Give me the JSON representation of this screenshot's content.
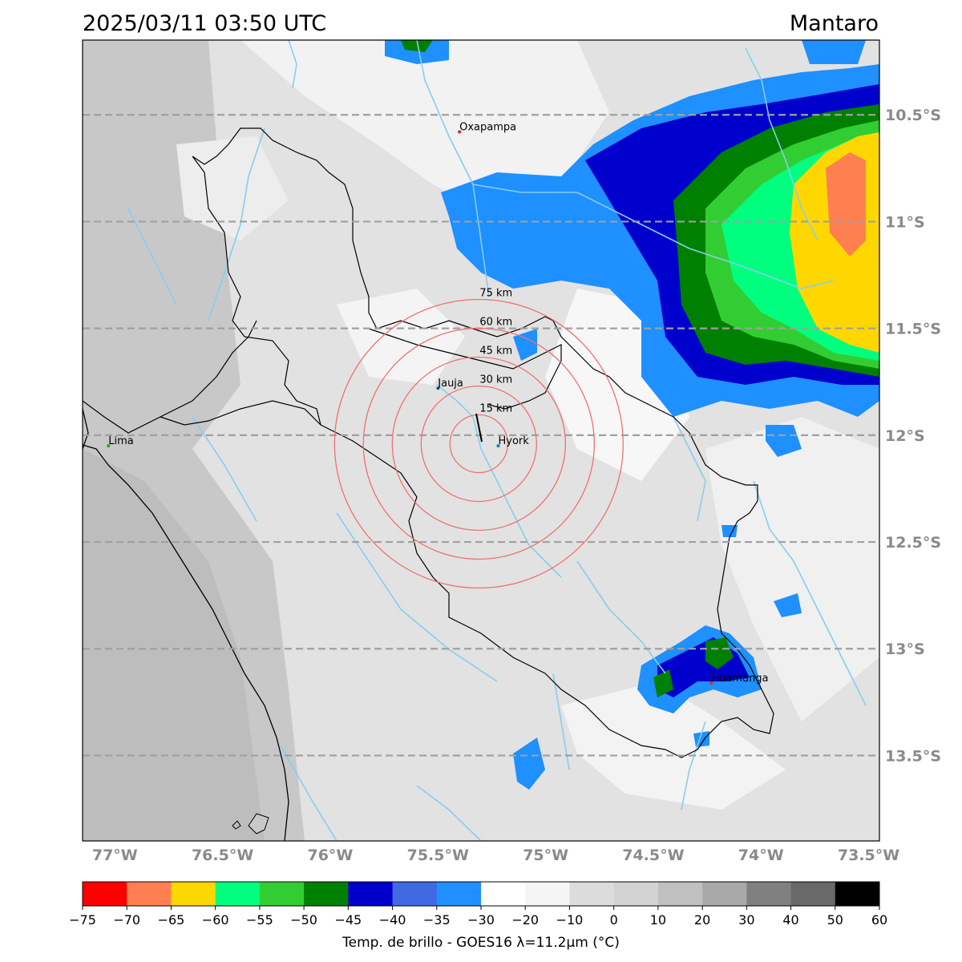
{
  "header": {
    "timestamp": "2025/03/11 03:50 UTC",
    "region": "Mantaro"
  },
  "map": {
    "lon_range": [
      -77.15,
      -73.45
    ],
    "lat_range": [
      -13.9,
      -10.15
    ],
    "lat_ticks": [
      {
        "value": -10.5,
        "label": "10.5°S"
      },
      {
        "value": -11.0,
        "label": "11°S"
      },
      {
        "value": -11.5,
        "label": "11.5°S"
      },
      {
        "value": -12.0,
        "label": "12°S"
      },
      {
        "value": -12.5,
        "label": "12.5°S"
      },
      {
        "value": -13.0,
        "label": "13°S"
      },
      {
        "value": -13.5,
        "label": "13.5°S"
      }
    ],
    "lon_ticks": [
      {
        "value": -77.0,
        "label": "77°W"
      },
      {
        "value": -76.5,
        "label": "76.5°W"
      },
      {
        "value": -76.0,
        "label": "76°W"
      },
      {
        "value": -75.5,
        "label": "75.5°W"
      },
      {
        "value": -75.0,
        "label": "75°W"
      },
      {
        "value": -74.5,
        "label": "74.5°W"
      },
      {
        "value": -74.0,
        "label": "74°W"
      },
      {
        "value": -73.5,
        "label": "73.5°W"
      }
    ],
    "cities": [
      {
        "name": "Oxapampa",
        "lon": -75.4,
        "lat": -10.58,
        "color": "#d62728"
      },
      {
        "name": "Jauja",
        "lon": -75.5,
        "lat": -11.78,
        "color": "#1f77b4"
      },
      {
        "name": "Hyork",
        "lon": -75.22,
        "lat": -12.05,
        "color": "#1f77b4"
      },
      {
        "name": "Lima",
        "lon": -77.03,
        "lat": -12.05,
        "color": "#2ca02c"
      },
      {
        "name": "Huamanga",
        "lon": -74.23,
        "lat": -13.16,
        "color": "#d62728"
      }
    ],
    "radar_center": {
      "lon": -75.31,
      "lat": -12.04
    },
    "rings": [
      {
        "label": "15 km",
        "radius_km": 15
      },
      {
        "label": "30 km",
        "radius_km": 30
      },
      {
        "label": "45 km",
        "radius_km": 45
      },
      {
        "label": "60 km",
        "radius_km": 60
      },
      {
        "label": "75 km",
        "radius_km": 75
      }
    ]
  },
  "colorbar": {
    "title": "Temp. de brillo - GOES16 λ=11.2μm (°C)",
    "ticks": [
      "−75",
      "−70",
      "−65",
      "−60",
      "−55",
      "−50",
      "−45",
      "−40",
      "−35",
      "−30",
      "−20",
      "−10",
      "0",
      "10",
      "20",
      "30",
      "40",
      "50",
      "60"
    ],
    "colors": [
      "#ff0000",
      "#ff7f50",
      "#ffd700",
      "#00ff7f",
      "#32cd32",
      "#008000",
      "#0000cd",
      "#4169e1",
      "#1e90ff",
      "#ffffff",
      "#f5f5f5",
      "#dcdcdc",
      "#d3d3d3",
      "#c0c0c0",
      "#a9a9a9",
      "#808080",
      "#696969",
      "#000000"
    ]
  }
}
